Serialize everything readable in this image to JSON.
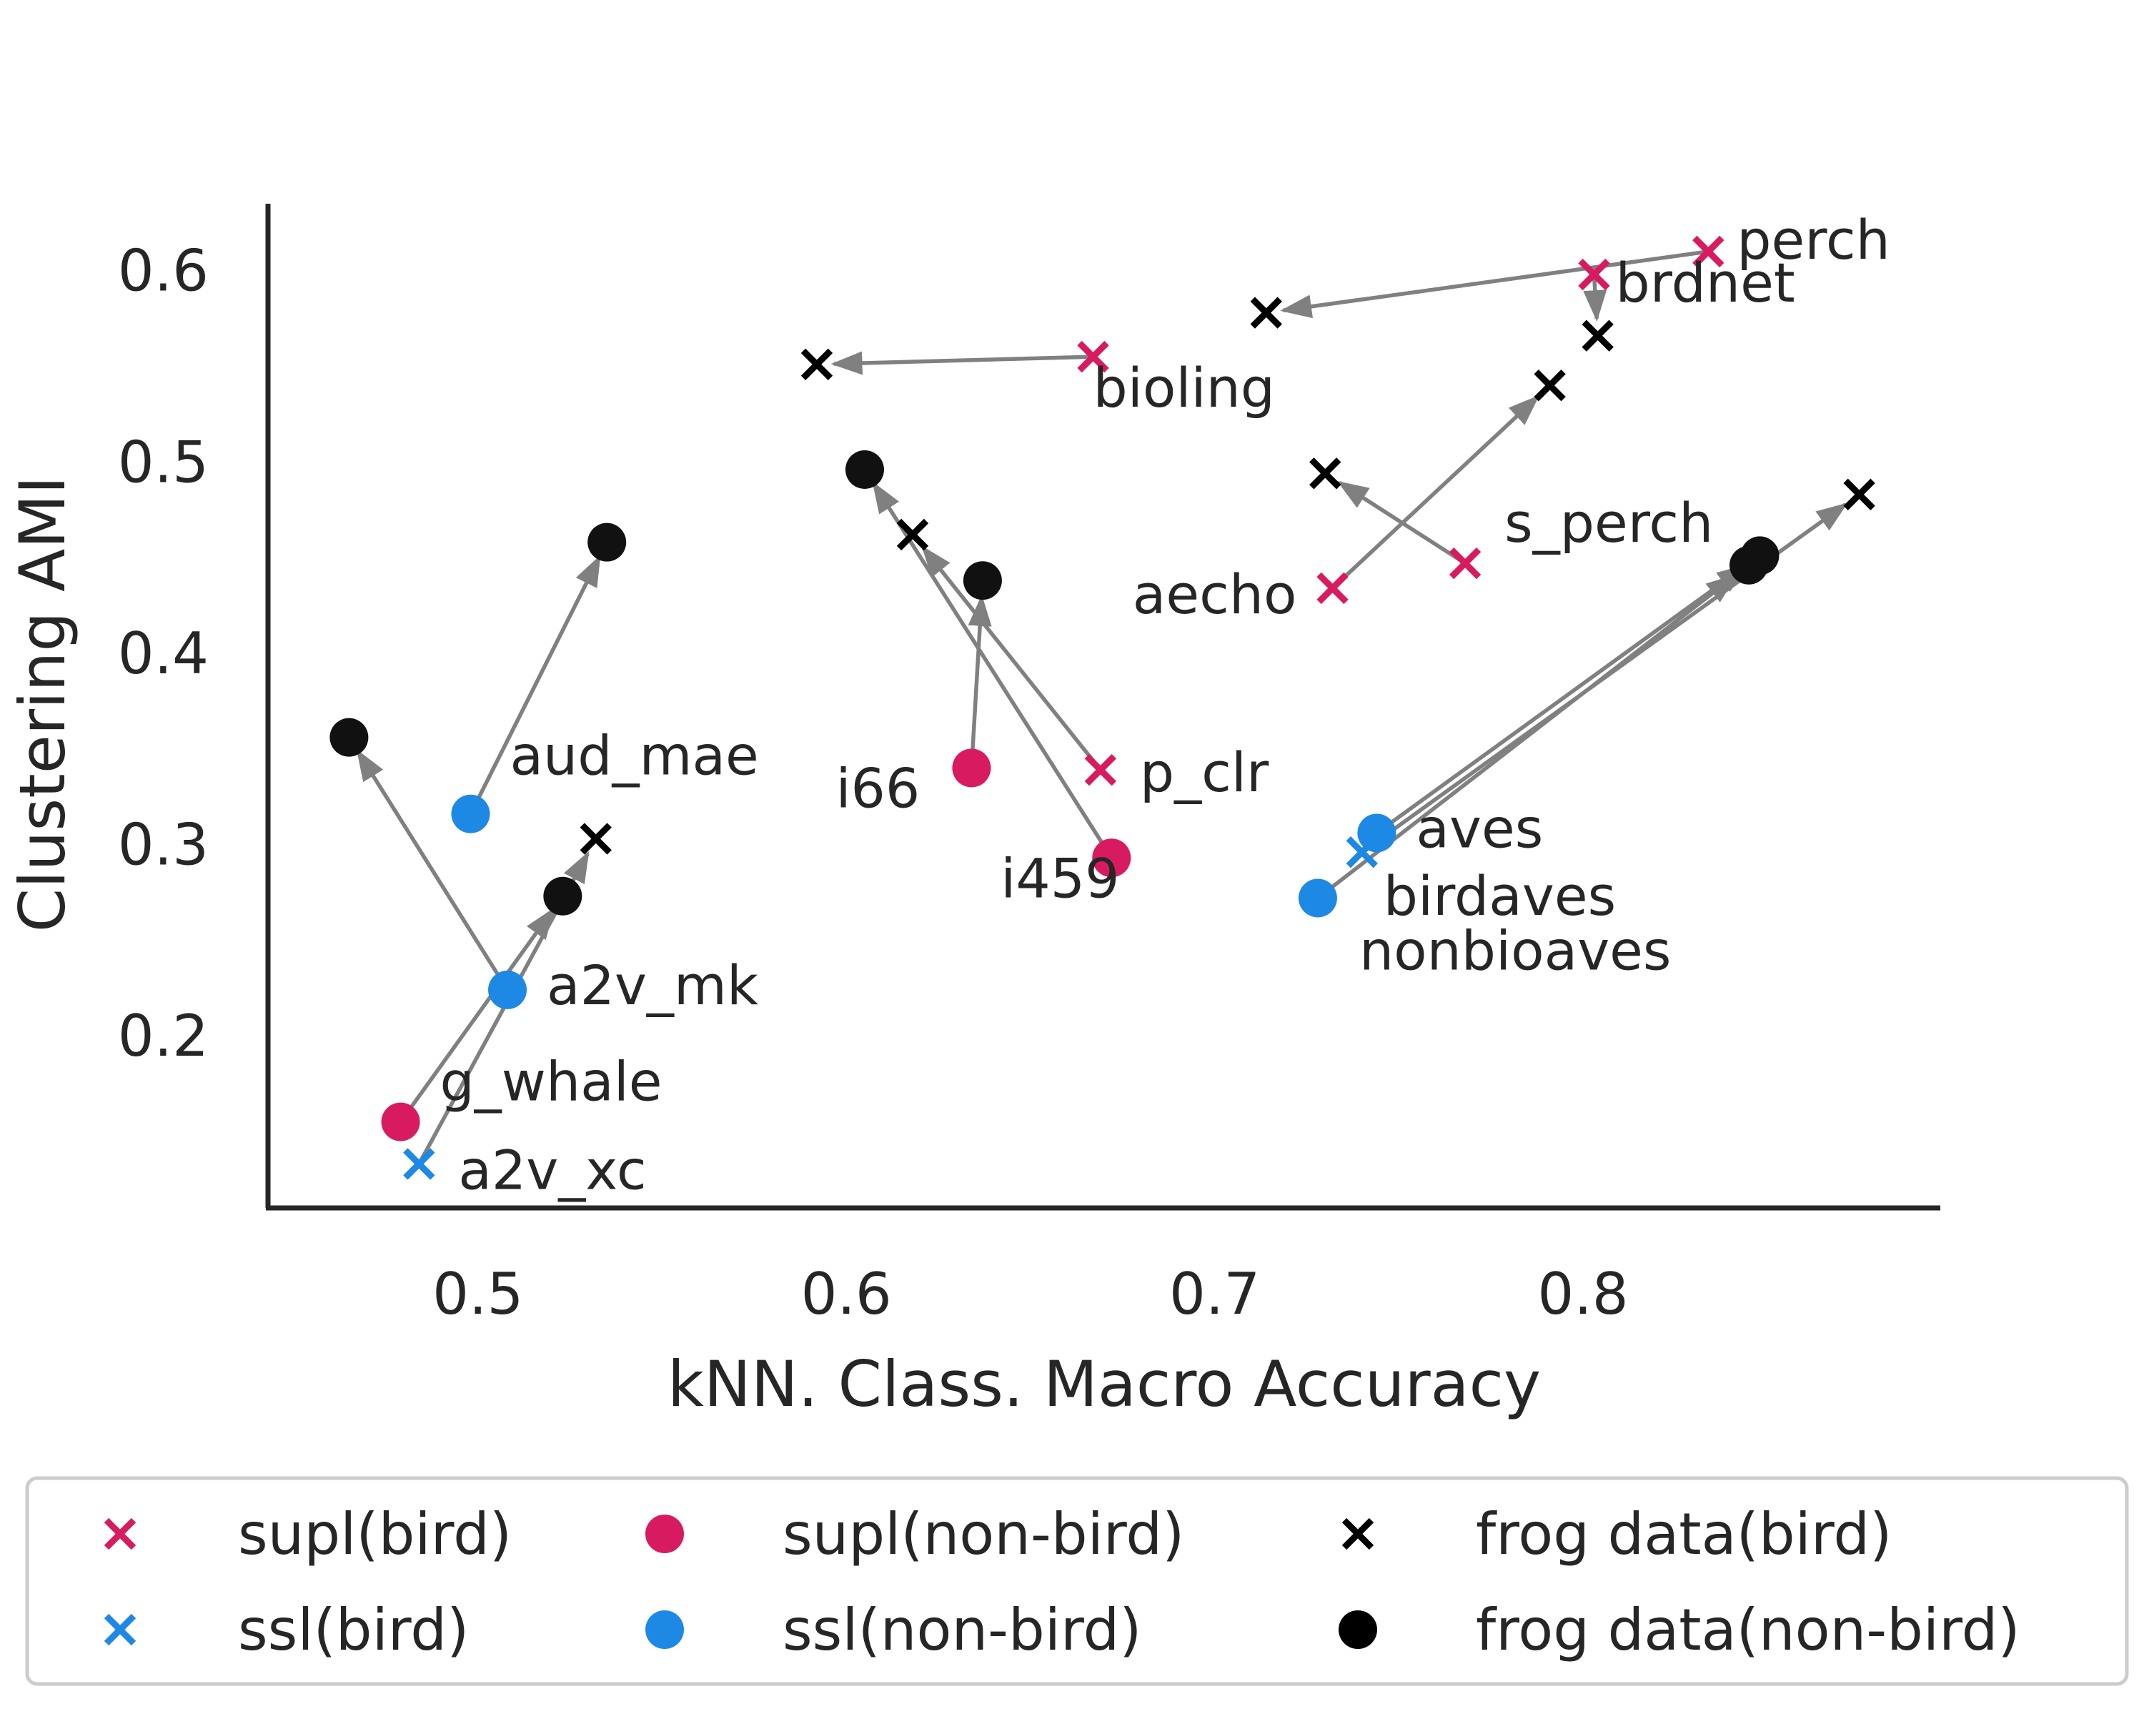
{
  "chart_data": {
    "type": "scatter",
    "xlabel": "kNN. Class. Macro Accuracy",
    "ylabel": "Clustering AMI",
    "xlim": [
      0.443,
      0.897
    ],
    "ylim": [
      0.11,
      0.635
    ],
    "xticks": [
      "0.5",
      "0.6",
      "0.7",
      "0.8"
    ],
    "xtick_values": [
      0.5,
      0.6,
      0.7,
      0.8
    ],
    "yticks": [
      "0.2",
      "0.3",
      "0.4",
      "0.5",
      "0.6"
    ],
    "ytick_values": [
      0.2,
      0.3,
      0.4,
      0.5,
      0.6
    ],
    "grid": false,
    "legend_position": "bottom",
    "colors": {
      "supl": "#d81b60",
      "ssl": "#1e88e5",
      "frog": "#000000",
      "arrow": "#808080",
      "axis": "#262626"
    },
    "legend": [
      {
        "label": "supl(bird)",
        "marker": "x",
        "color": "#d81b60"
      },
      {
        "label": "supl(non-bird)",
        "marker": "o",
        "color": "#d81b60"
      },
      {
        "label": "frog data(bird)",
        "marker": "x",
        "color": "#000000"
      },
      {
        "label": "ssl(bird)",
        "marker": "x",
        "color": "#1e88e5"
      },
      {
        "label": "ssl(non-bird)",
        "marker": "o",
        "color": "#1e88e5"
      },
      {
        "label": "frog data(non-bird)",
        "marker": "o",
        "color": "#000000"
      }
    ],
    "models": [
      {
        "label": "perch",
        "group": "supl",
        "marker": "x",
        "x": 0.834,
        "y": 0.61,
        "to": [
          0.714,
          0.578
        ]
      },
      {
        "label": "brdnet",
        "group": "supl",
        "marker": "x",
        "x": 0.803,
        "y": 0.598,
        "to": [
          0.804,
          0.566
        ]
      },
      {
        "label": "bioling",
        "group": "supl",
        "marker": "x",
        "x": 0.667,
        "y": 0.555,
        "to": [
          0.592,
          0.551
        ]
      },
      {
        "label": "aecho",
        "group": "supl",
        "marker": "x",
        "x": 0.732,
        "y": 0.434,
        "to": [
          0.791,
          0.54
        ]
      },
      {
        "label": "s_perch",
        "group": "supl",
        "marker": "x",
        "x": 0.768,
        "y": 0.447,
        "to": [
          0.73,
          0.494
        ]
      },
      {
        "label": "p_clr",
        "group": "supl",
        "marker": "x",
        "x": 0.669,
        "y": 0.339,
        "to": [
          0.618,
          0.462
        ]
      },
      {
        "label": "i459",
        "group": "supl",
        "marker": "o",
        "x": 0.672,
        "y": 0.293,
        "to": [
          0.605,
          0.496
        ]
      },
      {
        "label": "i66",
        "group": "supl",
        "marker": "o",
        "x": 0.634,
        "y": 0.34,
        "to": [
          0.637,
          0.438
        ]
      },
      {
        "label": "g_whale",
        "group": "supl",
        "marker": "o",
        "x": 0.479,
        "y": 0.155,
        "to": [
          0.523,
          0.273
        ]
      },
      {
        "label": "aud_mae",
        "group": "ssl",
        "marker": "o",
        "x": 0.498,
        "y": 0.316,
        "to": [
          0.535,
          0.458
        ]
      },
      {
        "label": "a2v_mk",
        "group": "ssl",
        "marker": "o",
        "x": 0.508,
        "y": 0.224,
        "to": [
          0.465,
          0.356
        ]
      },
      {
        "label": "a2v_xc",
        "group": "ssl",
        "marker": "x",
        "x": 0.484,
        "y": 0.133,
        "to": [
          0.532,
          0.303
        ]
      },
      {
        "label": "aves",
        "group": "ssl",
        "marker": "o",
        "x": 0.744,
        "y": 0.306,
        "to": [
          0.848,
          0.451
        ]
      },
      {
        "label": "birdaves",
        "group": "ssl",
        "marker": "x",
        "x": 0.74,
        "y": 0.296,
        "to": [
          0.875,
          0.483
        ]
      },
      {
        "label": "nonbioaves",
        "group": "ssl",
        "marker": "o",
        "x": 0.728,
        "y": 0.272,
        "to": [
          0.845,
          0.446
        ]
      }
    ]
  }
}
